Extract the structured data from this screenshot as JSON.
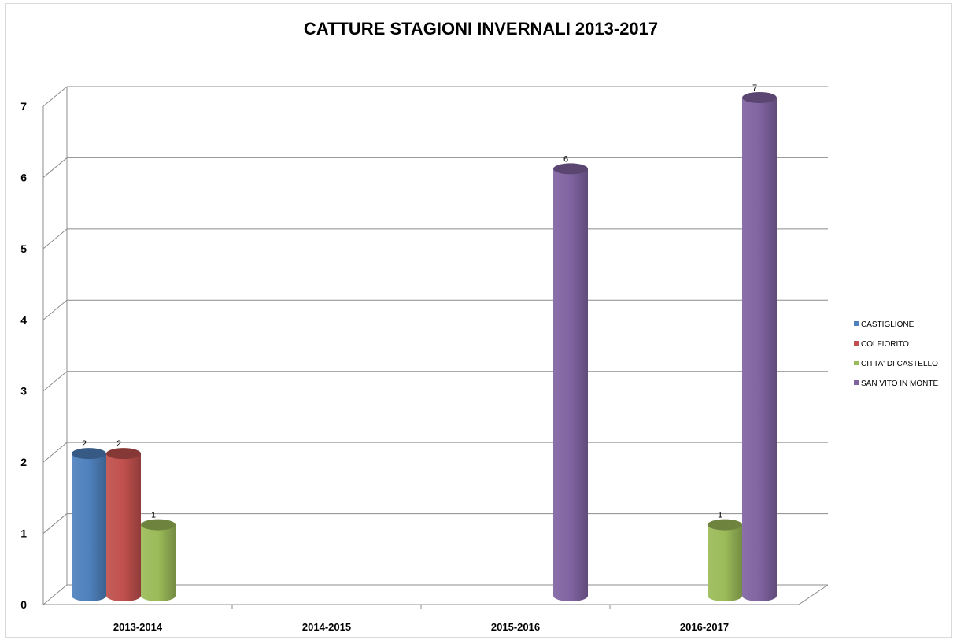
{
  "chart_data": {
    "type": "bar",
    "title": "CATTURE STAGIONI INVERNALI 2013-2017",
    "categories": [
      "2013-2014",
      "2014-2015",
      "2015-2016",
      "2016-2017"
    ],
    "series": [
      {
        "name": "CASTIGLIONE",
        "color": "#4f81bd",
        "values": [
          2,
          0,
          0,
          0
        ]
      },
      {
        "name": "COLFIORITO",
        "color": "#c0504d",
        "values": [
          2,
          0,
          0,
          0
        ]
      },
      {
        "name": "CITTA' DI CASTELLO",
        "color": "#9bbb59",
        "values": [
          1,
          0,
          0,
          1
        ]
      },
      {
        "name": "SAN VITO IN MONTE",
        "color": "#8064a2",
        "values": [
          0,
          0,
          6,
          7
        ]
      }
    ],
    "yticks": [
      "0",
      "1",
      "2",
      "3",
      "4",
      "5",
      "6",
      "7"
    ],
    "ylim": [
      0,
      7
    ],
    "grid": true,
    "legend": "right",
    "bar_shape": "3d-cylinder"
  }
}
